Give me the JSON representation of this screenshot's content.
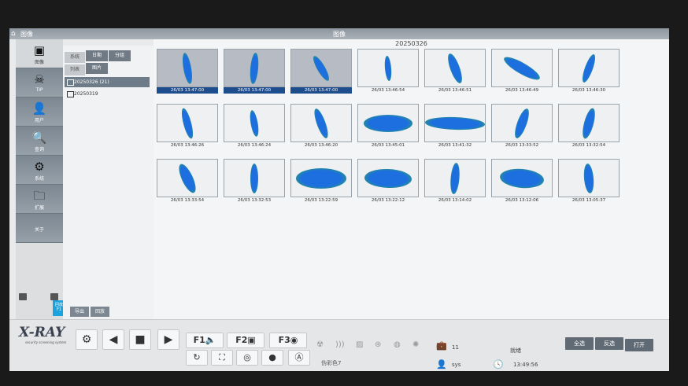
{
  "titlebar": {
    "app": "图像",
    "title": "图像"
  },
  "sidebar": {
    "items": [
      {
        "label": "图像",
        "icon": "image-icon"
      },
      {
        "label": "TIP",
        "icon": "skull-icon"
      },
      {
        "label": "用户",
        "icon": "user-icon"
      },
      {
        "label": "查询",
        "icon": "search-icon"
      },
      {
        "label": "系统",
        "icon": "gear-icon"
      },
      {
        "label": "扩展",
        "icon": "folder-export-icon"
      },
      {
        "label": "关于",
        "icon": ""
      }
    ],
    "f1_button": "回放 F1"
  },
  "folder_panel": {
    "tabs_row1": [
      "系统",
      "日期",
      "分组"
    ],
    "tabs_row2": [
      "列表",
      "图片"
    ],
    "folders": [
      {
        "label": "20250326 (21)",
        "selected": true
      },
      {
        "label": "20250319",
        "selected": false
      }
    ],
    "bottom_buttons": [
      "导出",
      "回放"
    ]
  },
  "gallery": {
    "date": "20250326",
    "thumbnails": [
      {
        "time": "26/03 13:47:00",
        "selected": true
      },
      {
        "time": "26/03 13:47:00",
        "selected": true
      },
      {
        "time": "26/03 13:47:00",
        "selected": true
      },
      {
        "time": "26/03 13:46:54"
      },
      {
        "time": "26/03 13:46:51"
      },
      {
        "time": "26/03 13:46:49"
      },
      {
        "time": "26/03 13:46:30"
      },
      {
        "time": "26/03 13:46:26"
      },
      {
        "time": "26/03 13:46:24"
      },
      {
        "time": "26/03 13:46:20"
      },
      {
        "time": "26/03 13:45:01"
      },
      {
        "time": "26/03 13:41:32"
      },
      {
        "time": "26/03 13:33:52"
      },
      {
        "time": "26/03 13:32:54"
      },
      {
        "time": "26/03 13:33:54"
      },
      {
        "time": "26/03 13:32:53"
      },
      {
        "time": "26/03 13:22:59"
      },
      {
        "time": "26/03 13:22:12"
      },
      {
        "time": "26/03 13:14:02"
      },
      {
        "time": "26/03 13:12:06"
      },
      {
        "time": "26/03 13:05:37"
      }
    ]
  },
  "toolbar": {
    "logo": "X-RAY",
    "logo_sub": "security screening system",
    "f1": "F1",
    "f2": "F2",
    "f3": "F3",
    "color_mode": "伪彩色7",
    "count": "11",
    "status": "就绪",
    "user": "sys",
    "time": "13:49:56"
  },
  "actions": {
    "select_all": "全选",
    "invert": "反选",
    "open": "打开"
  },
  "colors": {
    "accent": "#1ba3e0",
    "selected": "#1d4d8d",
    "sidebar": "#7c8791"
  }
}
